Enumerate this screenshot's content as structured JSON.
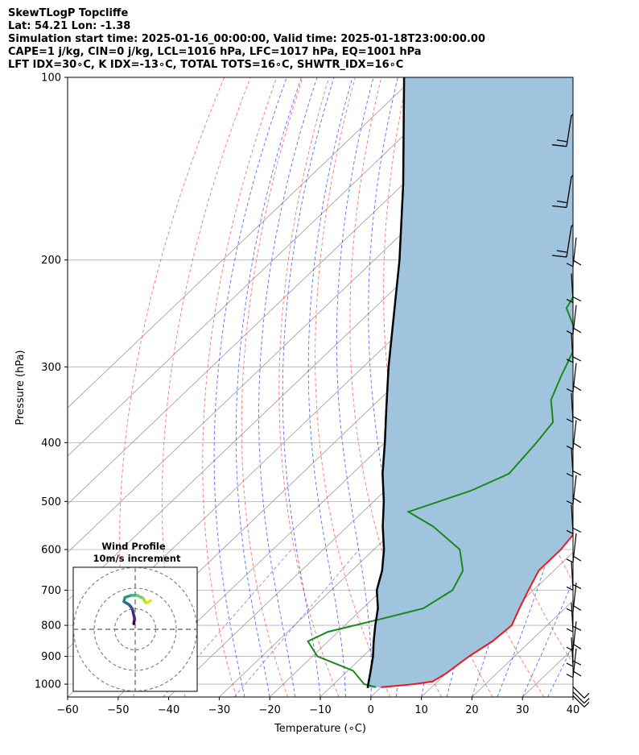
{
  "header": {
    "line1": "SkewTLogP Topcliffe",
    "line2": "Lat: 54.21   Lon: -1.38",
    "line3": "Simulation start time: 2025-01-16_00:00:00, Valid time: 2025-01-18T23:00:00.00",
    "line4": "CAPE=1 j/kg, CIN=0 j/kg, LCL=1016 hPa, LFC=1017 hPa, EQ=1001 hPa",
    "line5": "LFT IDX=30∘C, K IDX=-13∘C, TOTAL TOTS=16∘C, SHWTR_IDX=16∘C"
  },
  "colors": {
    "temperature": "#e8191c",
    "dewpoint": "#198a19",
    "parcel": "#000000",
    "cape_fill": "#a0c4de",
    "dry_adiabat": "#ff4d4d",
    "moist_adiabat": "#3344ff",
    "mixing_ratio": "#9933ff",
    "isotherm": "#9a9a9a"
  },
  "chart_data": {
    "type": "line",
    "subtype": "skew-t log-p",
    "xlabel": "Temperature (∘C)",
    "ylabel": "Pressure (hPa)",
    "xlim": [
      -60,
      40
    ],
    "ylim": [
      1050,
      100
    ],
    "y_scale": "log",
    "x_ticks": [
      "−60",
      "−50",
      "−40",
      "−30",
      "−20",
      "−10",
      "0",
      "10",
      "20",
      "30",
      "40"
    ],
    "y_ticks": [
      "100",
      "200",
      "300",
      "400",
      "500",
      "600",
      "700",
      "800",
      "900",
      "1000"
    ],
    "grid": true,
    "series": [
      {
        "name": "temperature",
        "points": [
          [
            1012,
            0
          ],
          [
            1000,
            6
          ],
          [
            990,
            9
          ],
          [
            960,
            10
          ],
          [
            900,
            11
          ],
          [
            850,
            12.5
          ],
          [
            800,
            13
          ],
          [
            750,
            11
          ],
          [
            700,
            9
          ],
          [
            650,
            7
          ],
          [
            600,
            7
          ],
          [
            550,
            6
          ],
          [
            500,
            4
          ],
          [
            450,
            1
          ],
          [
            400,
            -3
          ],
          [
            350,
            -8
          ],
          [
            300,
            -12
          ],
          [
            270,
            -15
          ],
          [
            250,
            -18
          ],
          [
            230,
            -22
          ],
          [
            210,
            -27
          ],
          [
            200,
            -30
          ],
          [
            190,
            -32
          ],
          [
            180,
            -33
          ],
          [
            170,
            -35
          ],
          [
            160,
            -38
          ],
          [
            150,
            -41
          ],
          [
            140,
            -44
          ],
          [
            130,
            -48
          ],
          [
            120,
            -53
          ],
          [
            110,
            -58
          ],
          [
            100,
            -62
          ]
        ]
      },
      {
        "name": "dewpoint",
        "points": [
          [
            1012,
            -1
          ],
          [
            1000,
            -4
          ],
          [
            950,
            -9
          ],
          [
            900,
            -19
          ],
          [
            850,
            -24
          ],
          [
            820,
            -22
          ],
          [
            780,
            -14
          ],
          [
            750,
            -8
          ],
          [
            700,
            -6
          ],
          [
            650,
            -8
          ],
          [
            600,
            -13
          ],
          [
            550,
            -23
          ],
          [
            520,
            -31
          ],
          [
            480,
            -23
          ],
          [
            450,
            -19
          ],
          [
            400,
            -20
          ],
          [
            370,
            -21
          ],
          [
            340,
            -26
          ],
          [
            310,
            -29
          ],
          [
            280,
            -32
          ],
          [
            260,
            -36
          ],
          [
            240,
            -42
          ],
          [
            220,
            -44
          ],
          [
            200,
            -44
          ],
          [
            180,
            -47
          ],
          [
            170,
            -50
          ],
          [
            160,
            -54
          ],
          [
            150,
            -57
          ],
          [
            140,
            -61
          ],
          [
            130,
            -64
          ],
          [
            110,
            -67
          ],
          [
            100,
            -70
          ]
        ]
      },
      {
        "name": "parcel",
        "points": [
          [
            1015,
            -2.5
          ],
          [
            950,
            -5.5
          ],
          [
            900,
            -8
          ],
          [
            850,
            -11
          ],
          [
            800,
            -14
          ],
          [
            750,
            -17
          ],
          [
            700,
            -21
          ],
          [
            650,
            -24
          ],
          [
            600,
            -28
          ],
          [
            550,
            -33
          ],
          [
            500,
            -38
          ],
          [
            450,
            -44
          ],
          [
            400,
            -50
          ],
          [
            350,
            -57
          ],
          [
            300,
            -65
          ],
          [
            250,
            -74
          ],
          [
            200,
            -85
          ],
          [
            150,
            -100
          ],
          [
            100,
            -122
          ]
        ]
      }
    ],
    "winds_hpa": [
      115,
      145,
      175,
      205,
      235,
      265,
      295,
      330,
      370,
      410,
      455,
      505,
      565,
      630,
      700,
      760,
      820,
      880,
      935,
      975,
      1010,
      1030,
      1045
    ],
    "inset": {
      "title": "Wind Profile",
      "subtitle": "10m/s increment",
      "rings_ms": [
        10,
        20,
        30
      ]
    }
  }
}
